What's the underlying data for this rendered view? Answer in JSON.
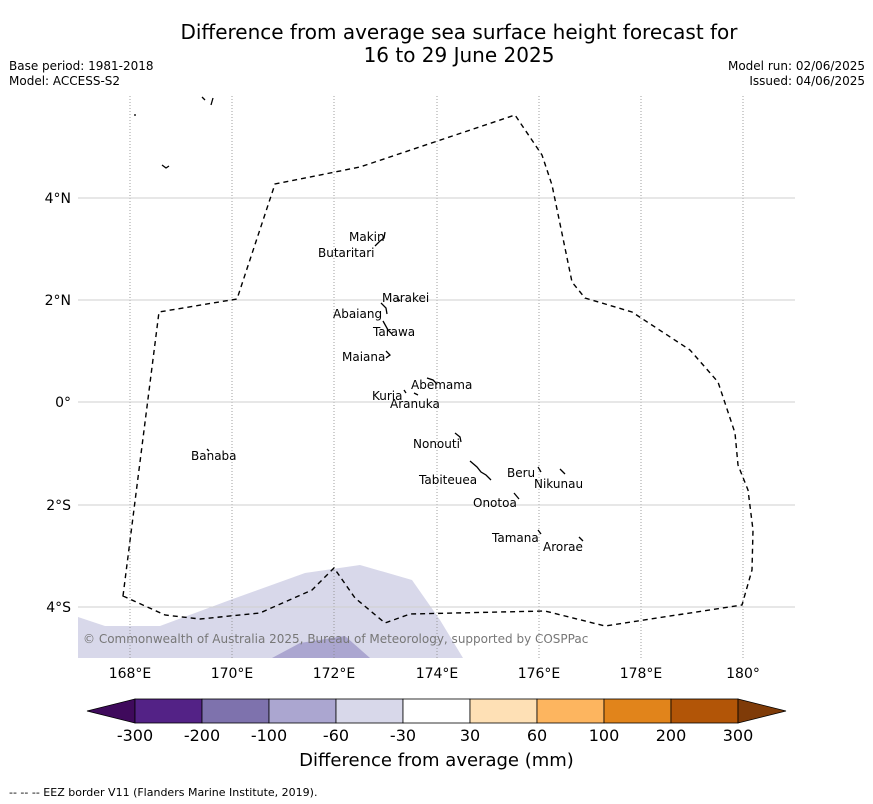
{
  "title_line1": "Difference from average sea surface height forecast for",
  "title_line2": "16 to 29 June 2025",
  "meta_left": {
    "base_period": "Base period: 1981-2018",
    "model": "Model: ACCESS-S2"
  },
  "meta_right": {
    "model_run": "Model run: 02/06/2025",
    "issued": "Issued: 04/06/2025"
  },
  "map": {
    "lon_range": [
      167,
      181
    ],
    "lat_range": [
      -5,
      6
    ],
    "lon_ticks": [
      "168°E",
      "170°E",
      "172°E",
      "174°E",
      "176°E",
      "178°E",
      "180°"
    ],
    "lat_ticks": [
      "4°N",
      "2°N",
      "0°",
      "2°S",
      "4°S"
    ],
    "islands": [
      "Makin",
      "Butaritari",
      "Marakei",
      "Abaiang",
      "Tarawa",
      "Maiana",
      "Abemama",
      "Kuria",
      "Aranuka",
      "Banaba",
      "Nonouti",
      "Beru",
      "Nikunau",
      "Tabiteuea",
      "Onotoa",
      "Tamana",
      "Arorae"
    ],
    "copyright": "© Commonwealth of Australia 2025, Bureau of Meteorology, supported by COSPPac"
  },
  "colorbar": {
    "ticks": [
      "-300",
      "-200",
      "-100",
      "-60",
      "-30",
      "30",
      "60",
      "100",
      "200",
      "300"
    ],
    "colors": [
      "#3f0a5c",
      "#532286",
      "#7e72ad",
      "#aba6d0",
      "#d8d8ea",
      "#ffffff",
      "#fee0b5",
      "#fdb55f",
      "#e1841b",
      "#b25507",
      "#7f3b08"
    ],
    "label": "Difference from average (mm)"
  },
  "footnote": "--  --  -- EEZ border V11 (Flanders Marine Institute, 2019)."
}
